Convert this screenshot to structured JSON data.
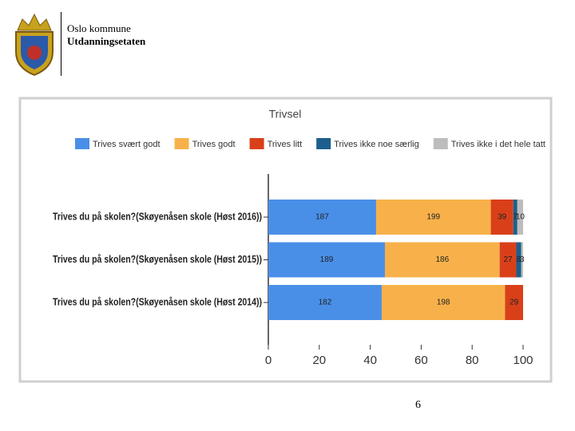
{
  "header": {
    "organization": "Oslo kommune",
    "department": "Utdanningsetaten"
  },
  "page_number": "6",
  "chart_data": {
    "type": "bar",
    "orientation": "horizontal",
    "stacked": "percent",
    "title": "Trivsel",
    "categories": [
      "Trives du på skolen?(Skøyenåsen skole (Høst 2016))",
      "Trives du på skolen?(Skøyenåsen skole (Høst 2015))",
      "Trives du på skolen?(Skøyenåsen skole (Høst 2014))"
    ],
    "series": [
      {
        "name": "Trives svært godt",
        "color": "#4a8fe7",
        "values": [
          187,
          189,
          182
        ]
      },
      {
        "name": "Trives godt",
        "color": "#f8b14a",
        "values": [
          199,
          186,
          198
        ]
      },
      {
        "name": "Trives litt",
        "color": "#d9401a",
        "values": [
          39,
          27,
          29
        ]
      },
      {
        "name": "Trives ikke noe særlig",
        "color": "#1c5f8c",
        "values": [
          7,
          8,
          0
        ]
      },
      {
        "name": "Trives ikke i det hele tatt",
        "color": "#bdbdbd",
        "values": [
          10,
          3,
          0
        ]
      }
    ],
    "xlim": [
      0,
      100
    ],
    "xticks": [
      0,
      20,
      40,
      60,
      80,
      100
    ],
    "legend": "top"
  }
}
